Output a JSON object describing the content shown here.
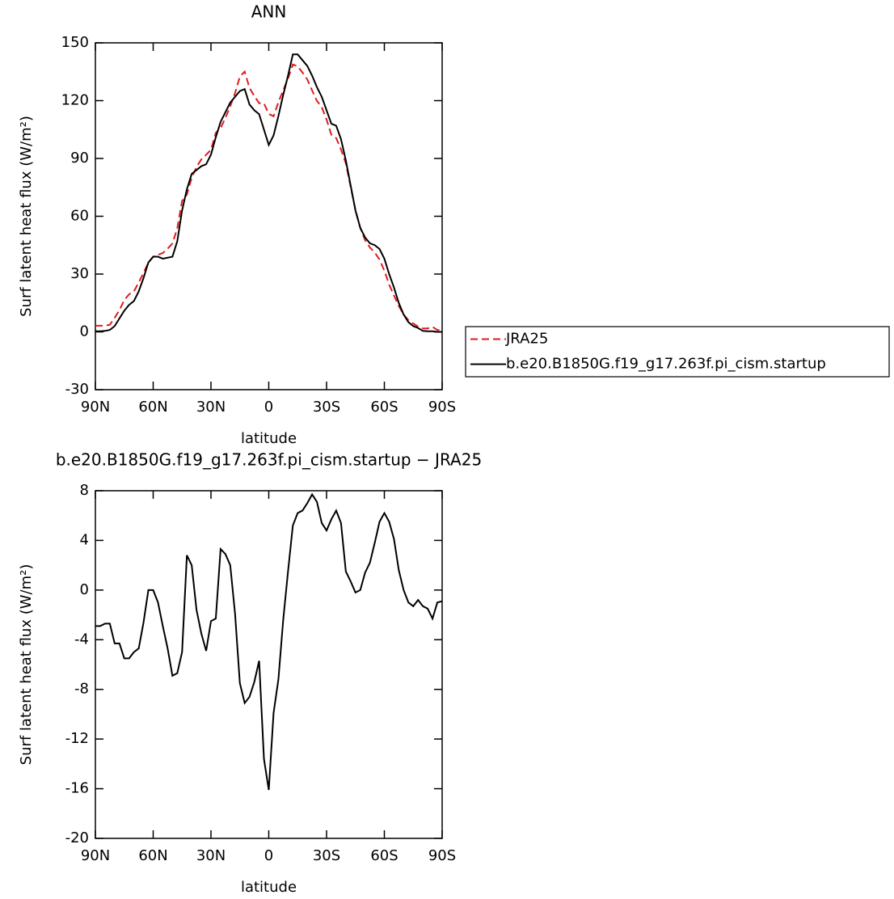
{
  "chart_data": [
    {
      "type": "line",
      "title": "ANN",
      "x_label": "latitude",
      "y_label": "Surf latent heat flux (W/m²)",
      "x": [
        90,
        87.5,
        85,
        82.5,
        80,
        77.5,
        75,
        72.5,
        70,
        67.5,
        65,
        62.5,
        60,
        57.5,
        55,
        52.5,
        50,
        47.5,
        45,
        42.5,
        40,
        37.5,
        35,
        32.5,
        30,
        27.5,
        25,
        22.5,
        20,
        17.5,
        15,
        12.5,
        10,
        7.5,
        5,
        2.5,
        0,
        -2.5,
        -5,
        -7.5,
        -10,
        -12.5,
        -15,
        -17.5,
        -20,
        -22.5,
        -25,
        -27.5,
        -30,
        -32.5,
        -35,
        -37.5,
        -40,
        -42.5,
        -45,
        -47.5,
        -50,
        -52.5,
        -55,
        -57.5,
        -60,
        -62.5,
        -65,
        -67.5,
        -70,
        -72.5,
        -75,
        -77.5,
        -80,
        -82.5,
        -85,
        -87.5,
        -90
      ],
      "xlim": [
        90,
        -90
      ],
      "xticks": [
        {
          "value": 90,
          "label": "90N"
        },
        {
          "value": 60,
          "label": "60N"
        },
        {
          "value": 30,
          "label": "30N"
        },
        0,
        {
          "value": -30,
          "label": "30S"
        },
        {
          "value": -60,
          "label": "60S"
        },
        {
          "value": -90,
          "label": "90S"
        }
      ],
      "ylim": [
        -30,
        150
      ],
      "yticks": [
        -30,
        0,
        30,
        60,
        90,
        120,
        150
      ],
      "legend": "right",
      "series": [
        {
          "name": "JRA25",
          "color": "#e31a1c",
          "style": "dashed",
          "values": [
            3.2,
            3.2,
            3.2,
            3.7,
            7.3,
            11.3,
            16.5,
            19.5,
            21,
            25.7,
            30.6,
            36,
            39,
            40,
            40.9,
            43.2,
            45.9,
            53.7,
            68,
            71.2,
            80,
            85.6,
            89.5,
            91.9,
            94.5,
            103.3,
            105.7,
            111.1,
            117,
            123.9,
            132.5,
            135.1,
            126.6,
            122.4,
            118.7,
            118.6,
            113.1,
            111.9,
            119.2,
            125.4,
            131.5,
            138.8,
            137.8,
            134.6,
            131,
            125.3,
            119.9,
            116.6,
            110.2,
            102.3,
            100.6,
            94.6,
            87.5,
            75.3,
            63.2,
            54,
            47.6,
            43.8,
            41.2,
            37.5,
            31.8,
            24.5,
            18.9,
            13.4,
            9,
            6,
            4.3,
            2.8,
            1.8,
            1.8,
            2.6,
            1,
            0.9
          ]
        },
        {
          "name": "b.e20.B1850G.f19_g17.263f.pi_cism.startup",
          "color": "#000000",
          "style": "solid",
          "values": [
            0.3,
            0.3,
            0.5,
            1,
            3,
            7,
            11,
            14,
            16,
            21,
            28,
            36,
            39,
            39,
            38,
            38.5,
            39,
            47,
            63,
            74,
            82,
            84,
            86,
            87,
            92,
            101,
            109,
            114,
            119,
            122,
            125,
            126,
            118,
            115,
            113,
            105,
            97,
            102,
            112,
            123,
            133,
            144,
            144,
            141,
            138,
            133,
            127,
            122,
            115,
            108,
            107,
            100,
            89,
            76,
            63,
            54,
            49,
            46,
            45,
            43,
            38,
            30,
            23,
            15,
            9,
            5,
            3,
            2,
            0.5,
            0.3,
            0.3,
            0,
            0
          ]
        }
      ]
    },
    {
      "type": "line",
      "title": "b.e20.B1850G.f19_g17.263f.pi_cism.startup − JRA25",
      "x_label": "latitude",
      "y_label": "Surf latent heat flux (W/m²)",
      "x": [
        90,
        87.5,
        85,
        82.5,
        80,
        77.5,
        75,
        72.5,
        70,
        67.5,
        65,
        62.5,
        60,
        57.5,
        55,
        52.5,
        50,
        47.5,
        45,
        42.5,
        40,
        37.5,
        35,
        32.5,
        30,
        27.5,
        25,
        22.5,
        20,
        17.5,
        15,
        12.5,
        10,
        7.5,
        5,
        2.5,
        0,
        -2.5,
        -5,
        -7.5,
        -10,
        -12.5,
        -15,
        -17.5,
        -20,
        -22.5,
        -25,
        -27.5,
        -30,
        -32.5,
        -35,
        -37.5,
        -40,
        -42.5,
        -45,
        -47.5,
        -50,
        -52.5,
        -55,
        -57.5,
        -60,
        -62.5,
        -65,
        -67.5,
        -70,
        -72.5,
        -75,
        -77.5,
        -80,
        -82.5,
        -85,
        -87.5,
        -90
      ],
      "xlim": [
        90,
        -90
      ],
      "xticks": [
        {
          "value": 90,
          "label": "90N"
        },
        {
          "value": 60,
          "label": "60N"
        },
        {
          "value": 30,
          "label": "30N"
        },
        0,
        {
          "value": -30,
          "label": "30S"
        },
        {
          "value": -60,
          "label": "60S"
        },
        {
          "value": -90,
          "label": "90S"
        }
      ],
      "ylim": [
        -20,
        8
      ],
      "yticks": [
        -20,
        -16,
        -12,
        -8,
        -4,
        0,
        4,
        8
      ],
      "series": [
        {
          "color": "#000000",
          "style": "solid",
          "values": [
            -2.9,
            -2.9,
            -2.7,
            -2.7,
            -4.3,
            -4.3,
            -5.5,
            -5.5,
            -5,
            -4.7,
            -2.6,
            0,
            0,
            -1,
            -2.9,
            -4.7,
            -6.9,
            -6.7,
            -5,
            2.8,
            2,
            -1.6,
            -3.5,
            -4.9,
            -2.5,
            -2.3,
            3.3,
            2.9,
            2,
            -1.9,
            -7.5,
            -9.1,
            -8.6,
            -7.4,
            -5.7,
            -13.6,
            -16.1,
            -9.9,
            -7.2,
            -2.4,
            1.5,
            5.2,
            6.2,
            6.4,
            7,
            7.7,
            7.1,
            5.4,
            4.8,
            5.7,
            6.4,
            5.4,
            1.5,
            0.7,
            -0.2,
            0,
            1.4,
            2.2,
            3.8,
            5.5,
            6.2,
            5.5,
            4.1,
            1.6,
            0,
            -1,
            -1.3,
            -0.8,
            -1.3,
            -1.5,
            -2.3,
            -1,
            -0.9
          ]
        }
      ]
    }
  ]
}
